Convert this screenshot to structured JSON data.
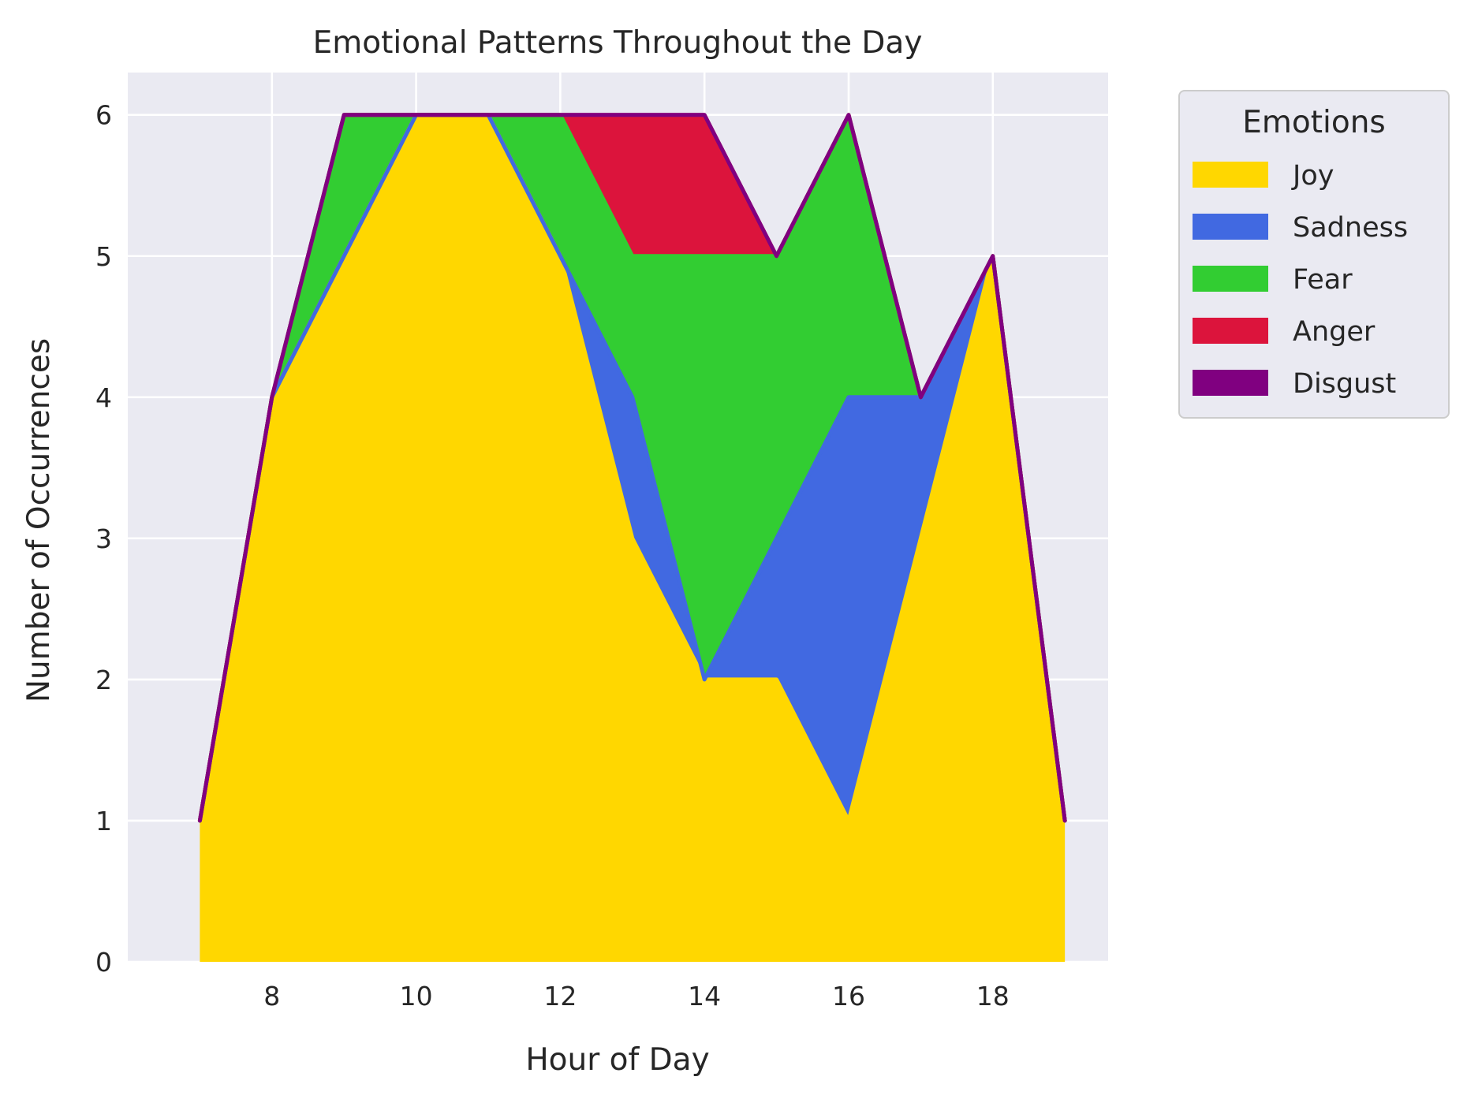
{
  "chart_data": {
    "type": "area",
    "stacked": true,
    "title": "Emotional Patterns Throughout the Day",
    "xlabel": "Hour of Day",
    "ylabel": "Number of Occurrences",
    "x": [
      7,
      8,
      9,
      10,
      11,
      12,
      13,
      14,
      15,
      16,
      17,
      18,
      19
    ],
    "xlim": [
      6.0,
      19.6
    ],
    "ylim": [
      0,
      6.3
    ],
    "xticks": [
      8,
      10,
      12,
      14,
      16,
      18
    ],
    "yticks": [
      0,
      1,
      2,
      3,
      4,
      5,
      6
    ],
    "grid": true,
    "legend": {
      "title": "Emotions",
      "placement": "outside-upper-right"
    },
    "series": [
      {
        "name": "Joy",
        "color": "#FFD700",
        "values": [
          1,
          4,
          5,
          6,
          6,
          5,
          3,
          2,
          2,
          1,
          3,
          5,
          1
        ]
      },
      {
        "name": "Sadness",
        "color": "#4169E1",
        "values": [
          0,
          0,
          0,
          0,
          0,
          0,
          1,
          0,
          1,
          3,
          1,
          0,
          0
        ]
      },
      {
        "name": "Fear",
        "color": "#32CD32",
        "values": [
          0,
          0,
          1,
          0,
          0,
          1,
          1,
          3,
          2,
          2,
          0,
          0,
          0
        ]
      },
      {
        "name": "Anger",
        "color": "#DC143C",
        "values": [
          0,
          0,
          0,
          0,
          0,
          0,
          1,
          1,
          0,
          0,
          0,
          0,
          0
        ]
      },
      {
        "name": "Disgust",
        "color": "#800080",
        "values": [
          0,
          0,
          0,
          0,
          0,
          0,
          0,
          0,
          0,
          0,
          0,
          0,
          0
        ]
      }
    ]
  }
}
